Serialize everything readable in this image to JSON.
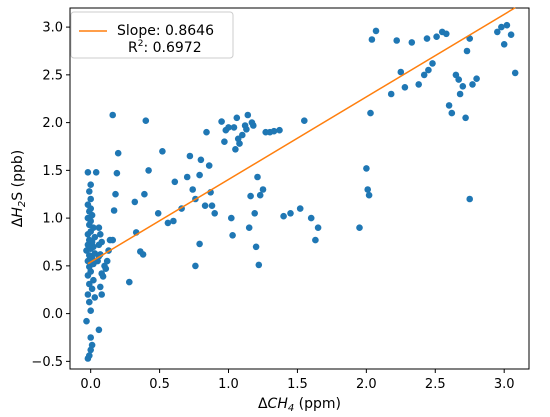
{
  "chart_data": {
    "type": "scatter",
    "xlabel_parts": {
      "delta": "Δ",
      "symbol": "CH",
      "subscript": "4",
      "unit": " (ppm)"
    },
    "ylabel_parts": {
      "delta": "Δ",
      "symbol": "H",
      "subscript": "2",
      "tail": "S",
      "unit": " (ppb)"
    },
    "xlim": [
      -0.15,
      3.18
    ],
    "ylim": [
      -0.58,
      3.2
    ],
    "xticks": [
      0.0,
      0.5,
      1.0,
      1.5,
      2.0,
      2.5,
      3.0
    ],
    "xtick_labels": [
      "0.0",
      "0.5",
      "1.0",
      "1.5",
      "2.0",
      "2.5",
      "3.0"
    ],
    "yticks": [
      -0.5,
      0.0,
      0.5,
      1.0,
      1.5,
      2.0,
      2.5,
      3.0
    ],
    "ytick_labels": [
      "−0.5",
      "0.0",
      "0.5",
      "1.0",
      "1.5",
      "2.0",
      "2.5",
      "3.0"
    ],
    "grid": false,
    "legend": {
      "placement": "top-left",
      "slope_label": "Slope: 0.8646",
      "r2_prefix": "R",
      "r2_sup": "2",
      "r2_value": ": 0.6972"
    },
    "fit_line": {
      "slope": 0.8646,
      "intercept": 0.54,
      "x_range": [
        -0.02,
        3.08
      ],
      "color": "#ff7f0e"
    },
    "series": [
      {
        "color": "#1f77b4",
        "points": [
          [
            -0.02,
            -0.47
          ],
          [
            -0.01,
            -0.44
          ],
          [
            0.0,
            -0.38
          ],
          [
            0.01,
            -0.33
          ],
          [
            0.0,
            -0.25
          ],
          [
            0.06,
            -0.17
          ],
          [
            -0.03,
            -0.08
          ],
          [
            0.0,
            0.03
          ],
          [
            -0.01,
            0.12
          ],
          [
            0.03,
            0.17
          ],
          [
            -0.02,
            0.2
          ],
          [
            0.01,
            0.26
          ],
          [
            -0.01,
            0.31
          ],
          [
            0.02,
            0.35
          ],
          [
            -0.02,
            0.4
          ],
          [
            0.0,
            0.44
          ],
          [
            -0.01,
            0.49
          ],
          [
            0.02,
            0.52
          ],
          [
            -0.02,
            0.55
          ],
          [
            0.01,
            0.58
          ],
          [
            -0.01,
            0.61
          ],
          [
            0.03,
            0.63
          ],
          [
            -0.03,
            0.66
          ],
          [
            0.0,
            0.68
          ],
          [
            0.02,
            0.7
          ],
          [
            -0.02,
            0.72
          ],
          [
            0.01,
            0.75
          ],
          [
            -0.01,
            0.77
          ],
          [
            0.03,
            0.8
          ],
          [
            -0.02,
            0.83
          ],
          [
            0.0,
            0.86
          ],
          [
            0.02,
            0.9
          ],
          [
            -0.01,
            0.93
          ],
          [
            0.0,
            0.97
          ],
          [
            -0.02,
            1.0
          ],
          [
            0.01,
            1.03
          ],
          [
            -0.01,
            1.07
          ],
          [
            0.0,
            1.1
          ],
          [
            -0.02,
            1.14
          ],
          [
            0.0,
            1.2
          ],
          [
            -0.01,
            1.28
          ],
          [
            0.0,
            1.35
          ],
          [
            -0.02,
            1.48
          ],
          [
            0.04,
            1.48
          ],
          [
            0.05,
            0.55
          ],
          [
            0.06,
            0.6
          ],
          [
            0.07,
            0.62
          ],
          [
            0.06,
            0.72
          ],
          [
            0.08,
            0.75
          ],
          [
            0.07,
            0.83
          ],
          [
            0.06,
            0.9
          ],
          [
            0.08,
            0.42
          ],
          [
            0.09,
            0.39
          ],
          [
            0.1,
            0.5
          ],
          [
            0.11,
            0.47
          ],
          [
            0.12,
            0.55
          ],
          [
            0.13,
            0.66
          ],
          [
            0.14,
            0.77
          ],
          [
            0.16,
            0.77
          ],
          [
            0.07,
            0.28
          ],
          [
            0.08,
            0.2
          ],
          [
            0.16,
            2.08
          ],
          [
            0.2,
            1.68
          ],
          [
            0.19,
            1.47
          ],
          [
            0.18,
            1.25
          ],
          [
            0.17,
            1.08
          ],
          [
            0.28,
            0.33
          ],
          [
            0.33,
            0.85
          ],
          [
            0.36,
            0.65
          ],
          [
            0.32,
            1.17
          ],
          [
            0.39,
            1.25
          ],
          [
            0.4,
            2.02
          ],
          [
            0.42,
            1.5
          ],
          [
            0.38,
            0.62
          ],
          [
            0.49,
            1.05
          ],
          [
            0.52,
            1.7
          ],
          [
            0.56,
            0.95
          ],
          [
            0.6,
            0.97
          ],
          [
            0.61,
            1.38
          ],
          [
            0.66,
            1.1
          ],
          [
            0.7,
            1.43
          ],
          [
            0.72,
            1.65
          ],
          [
            0.74,
            1.3
          ],
          [
            0.76,
            0.5
          ],
          [
            0.76,
            1.2
          ],
          [
            0.79,
            1.45
          ],
          [
            0.79,
            0.73
          ],
          [
            0.8,
            1.61
          ],
          [
            0.83,
            1.13
          ],
          [
            0.84,
            1.9
          ],
          [
            0.86,
            1.55
          ],
          [
            0.87,
            1.27
          ],
          [
            0.88,
            1.13
          ],
          [
            0.9,
            1.05
          ],
          [
            0.95,
            2.01
          ],
          [
            0.97,
            1.8
          ],
          [
            0.98,
            1.92
          ],
          [
            1.0,
            1.95
          ],
          [
            1.02,
            1.0
          ],
          [
            1.03,
            0.82
          ],
          [
            1.04,
            1.95
          ],
          [
            1.05,
            1.72
          ],
          [
            1.06,
            2.05
          ],
          [
            1.07,
            1.83
          ],
          [
            1.08,
            1.78
          ],
          [
            1.1,
            1.87
          ],
          [
            1.12,
            1.97
          ],
          [
            1.13,
            1.93
          ],
          [
            1.14,
            2.08
          ],
          [
            1.15,
            0.9
          ],
          [
            1.16,
            1.23
          ],
          [
            1.17,
            2.0
          ],
          [
            1.18,
            1.97
          ],
          [
            1.19,
            1.05
          ],
          [
            1.2,
            0.7
          ],
          [
            1.21,
            1.43
          ],
          [
            1.22,
            0.51
          ],
          [
            1.23,
            1.24
          ],
          [
            1.25,
            1.3
          ],
          [
            1.27,
            1.9
          ],
          [
            1.3,
            1.9
          ],
          [
            1.33,
            1.91
          ],
          [
            1.37,
            1.92
          ],
          [
            1.4,
            1.02
          ],
          [
            1.45,
            1.05
          ],
          [
            1.52,
            1.1
          ],
          [
            1.55,
            2.02
          ],
          [
            1.6,
            1.0
          ],
          [
            1.63,
            0.77
          ],
          [
            1.65,
            0.9
          ],
          [
            1.95,
            0.9
          ],
          [
            2.0,
            1.52
          ],
          [
            2.01,
            1.3
          ],
          [
            2.02,
            1.24
          ],
          [
            2.03,
            2.1
          ],
          [
            2.04,
            2.87
          ],
          [
            2.07,
            2.96
          ],
          [
            2.18,
            2.3
          ],
          [
            2.22,
            2.86
          ],
          [
            2.25,
            2.53
          ],
          [
            2.28,
            2.37
          ],
          [
            2.33,
            2.84
          ],
          [
            2.38,
            2.4
          ],
          [
            2.42,
            2.5
          ],
          [
            2.44,
            2.88
          ],
          [
            2.45,
            2.55
          ],
          [
            2.48,
            2.62
          ],
          [
            2.51,
            2.9
          ],
          [
            2.55,
            2.95
          ],
          [
            2.58,
            2.93
          ],
          [
            2.6,
            2.18
          ],
          [
            2.62,
            2.1
          ],
          [
            2.65,
            2.5
          ],
          [
            2.67,
            2.45
          ],
          [
            2.68,
            2.3
          ],
          [
            2.7,
            2.38
          ],
          [
            2.72,
            2.05
          ],
          [
            2.73,
            2.75
          ],
          [
            2.75,
            2.88
          ],
          [
            2.75,
            1.2
          ],
          [
            2.77,
            2.4
          ],
          [
            2.8,
            2.46
          ],
          [
            2.95,
            2.95
          ],
          [
            2.98,
            3.0
          ],
          [
            3.0,
            2.82
          ],
          [
            3.02,
            3.02
          ],
          [
            3.05,
            2.92
          ],
          [
            3.08,
            2.52
          ]
        ]
      }
    ]
  }
}
